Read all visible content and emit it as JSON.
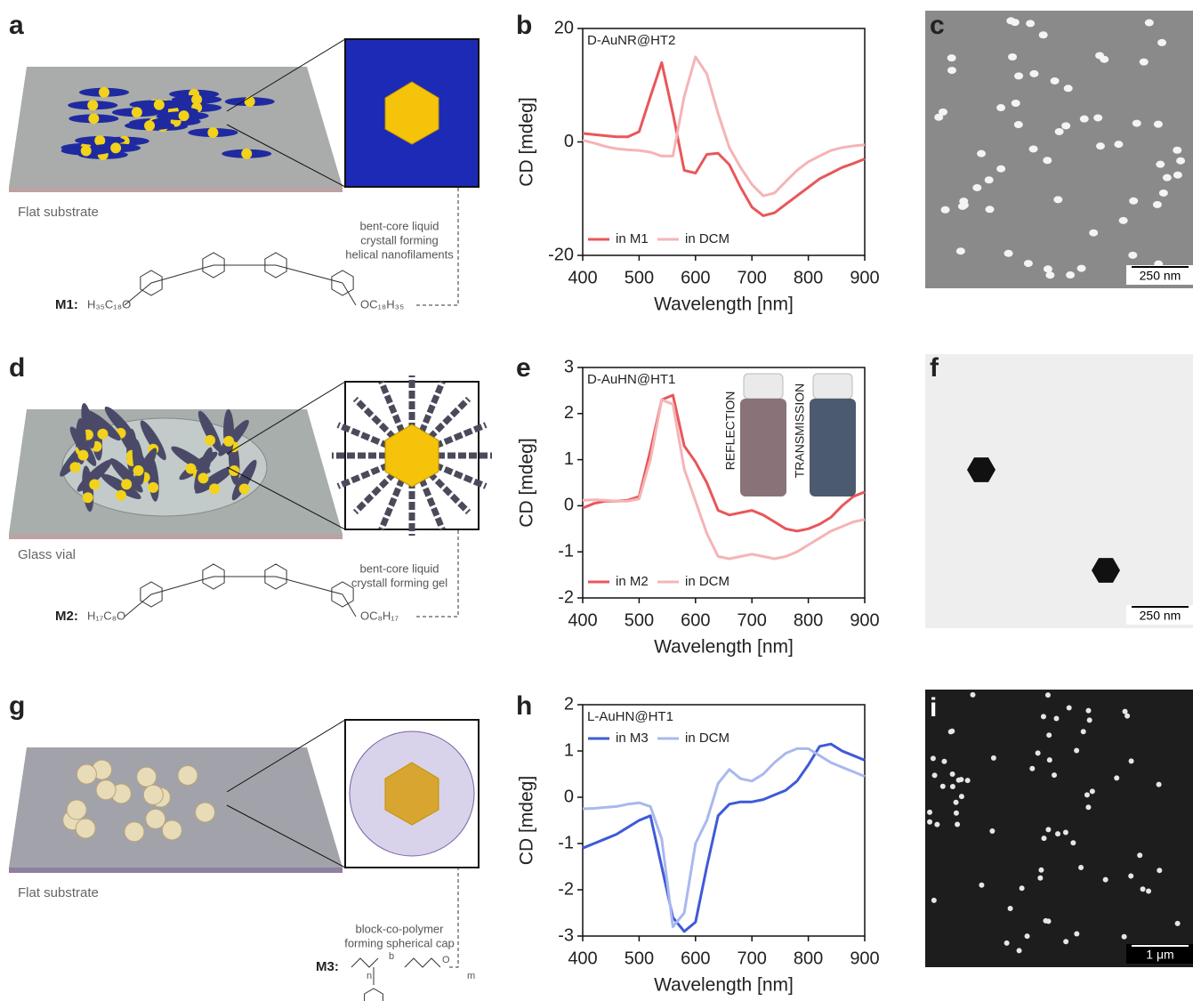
{
  "chart_data": [
    {
      "type": "line",
      "annotation": "D-AuNR@HT2",
      "xlabel": "Wavelength [nm]",
      "ylabel": "CD [mdeg]",
      "x": [
        400,
        420,
        440,
        460,
        480,
        500,
        520,
        540,
        560,
        580,
        600,
        620,
        640,
        660,
        680,
        700,
        720,
        740,
        760,
        780,
        800,
        820,
        840,
        860,
        880,
        900
      ],
      "series": [
        {
          "name": "in M1",
          "color": "#e8575a",
          "values": [
            1.5,
            1.3,
            1.1,
            0.9,
            0.9,
            1.8,
            8,
            14,
            5,
            -5,
            -5.5,
            -2.2,
            -2,
            -4,
            -8,
            -11.5,
            -13,
            -12.5,
            -11,
            -9.5,
            -8,
            -6.5,
            -5.5,
            -4.5,
            -3.8,
            -3
          ]
        },
        {
          "name": "in DCM",
          "color": "#f5b4b6",
          "values": [
            0.3,
            -0.2,
            -0.8,
            -1.2,
            -1.4,
            -1.5,
            -1.8,
            -2.5,
            -2.5,
            8,
            15,
            12,
            5,
            -1,
            -4.5,
            -7.5,
            -9.5,
            -9,
            -7,
            -5,
            -3.5,
            -2.5,
            -1.5,
            -1,
            -0.7,
            -0.5
          ]
        }
      ],
      "xlim": [
        400,
        900
      ],
      "xticks": [
        400,
        500,
        600,
        700,
        800,
        900
      ],
      "ylim": [
        -20,
        20
      ],
      "yticks": [
        -20,
        0,
        20
      ],
      "legend": "lower left"
    },
    {
      "type": "line",
      "annotation": "D-AuHN@HT1",
      "inset_labels": [
        "REFLECTION",
        "TRANSMISSION"
      ],
      "xlabel": "Wavelength [nm]",
      "ylabel": "CD [mdeg]",
      "x": [
        400,
        420,
        440,
        460,
        480,
        500,
        520,
        540,
        560,
        580,
        600,
        620,
        640,
        660,
        680,
        700,
        720,
        740,
        760,
        780,
        800,
        820,
        840,
        860,
        880,
        900
      ],
      "series": [
        {
          "name": "in M2",
          "color": "#e8575a",
          "values": [
            -0.05,
            0.05,
            0.1,
            0.1,
            0.12,
            0.2,
            1.2,
            2.3,
            2.4,
            1.3,
            0.95,
            0.5,
            -0.1,
            -0.2,
            -0.15,
            -0.1,
            -0.2,
            -0.35,
            -0.5,
            -0.55,
            -0.5,
            -0.4,
            -0.25,
            0,
            0.2,
            0.3
          ]
        },
        {
          "name": "in DCM",
          "color": "#f5b4b6",
          "values": [
            0.12,
            0.13,
            0.12,
            0.1,
            0.1,
            0.15,
            1.0,
            2.3,
            2.2,
            0.8,
            0.1,
            -0.6,
            -1.1,
            -1.15,
            -1.1,
            -1.05,
            -1.1,
            -1.15,
            -1.1,
            -1,
            -0.85,
            -0.7,
            -0.55,
            -0.45,
            -0.35,
            -0.3
          ]
        }
      ],
      "xlim": [
        400,
        900
      ],
      "xticks": [
        400,
        500,
        600,
        700,
        800,
        900
      ],
      "ylim": [
        -2,
        3
      ],
      "yticks": [
        -2,
        -1,
        0,
        1,
        2,
        3
      ],
      "legend": "lower left"
    },
    {
      "type": "line",
      "annotation": "L-AuHN@HT1",
      "xlabel": "Wavelength [nm]",
      "ylabel": "CD [mdeg]",
      "x": [
        400,
        420,
        440,
        460,
        480,
        500,
        520,
        540,
        560,
        580,
        600,
        620,
        640,
        660,
        680,
        700,
        720,
        740,
        760,
        780,
        800,
        820,
        840,
        860,
        880,
        900
      ],
      "series": [
        {
          "name": "in M3",
          "color": "#3e5bd6",
          "values": [
            -1.1,
            -1.0,
            -0.9,
            -0.8,
            -0.65,
            -0.5,
            -0.4,
            -1.5,
            -2.6,
            -2.9,
            -2.7,
            -1.5,
            -0.4,
            -0.15,
            -0.1,
            -0.1,
            -0.05,
            0.05,
            0.15,
            0.35,
            0.7,
            1.1,
            1.15,
            1.0,
            0.9,
            0.8
          ]
        },
        {
          "name": "in DCM",
          "color": "#aab8ee",
          "values": [
            -0.25,
            -0.24,
            -0.22,
            -0.2,
            -0.15,
            -0.12,
            -0.2,
            -0.9,
            -2.8,
            -2.5,
            -1.0,
            -0.5,
            0.3,
            0.6,
            0.4,
            0.35,
            0.5,
            0.75,
            0.95,
            1.05,
            1.05,
            0.9,
            0.75,
            0.65,
            0.55,
            0.45
          ]
        }
      ],
      "xlim": [
        400,
        900
      ],
      "xticks": [
        400,
        500,
        600,
        700,
        800,
        900
      ],
      "ylim": [
        -3,
        2
      ],
      "yticks": [
        -3,
        -2,
        -1,
        0,
        1,
        2
      ],
      "legend": "upper left"
    }
  ],
  "panel_letters": [
    "a",
    "b",
    "c",
    "d",
    "e",
    "f",
    "g",
    "h",
    "i"
  ],
  "illustrations": [
    {
      "caption": "Flat substrate",
      "description": [
        "bent-core liquid",
        "crystall forming",
        "helical nanofilaments"
      ],
      "monomer": "M1:",
      "formula": [
        "H₃₅C₁₈O",
        "OC₁₈H₃₅"
      ]
    },
    {
      "caption": "Glass vial",
      "description": [
        "bent-core liquid",
        "crystall forming gel"
      ],
      "monomer": "M2:",
      "formula": [
        "H₁₇C₈O",
        "OC₈H₁₇"
      ]
    },
    {
      "caption": "Flat substrate",
      "description": [
        "block-co-polymer",
        "forming spherical cap"
      ],
      "monomer": "M3:",
      "formula": [
        "n",
        "b",
        "O",
        "m"
      ]
    }
  ],
  "micrographs": [
    {
      "scale_bar": "250 nm"
    },
    {
      "scale_bar": "250 nm"
    },
    {
      "scale_bar": "1 μm"
    }
  ]
}
